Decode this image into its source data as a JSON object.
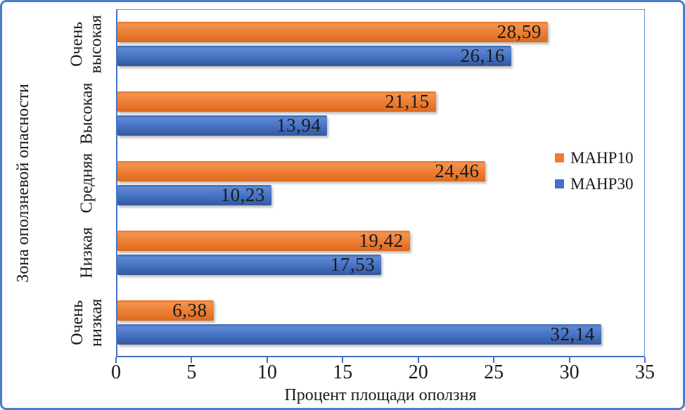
{
  "figure": {
    "border_color": "#4a7cc9",
    "background": "#ffffff"
  },
  "chart_data": {
    "type": "bar",
    "orientation": "horizontal",
    "title": "",
    "xlabel": "Процент площади оползня",
    "ylabel": "Зона оползневой опасности",
    "xlim": [
      0,
      35
    ],
    "xticks": [
      "0",
      "5",
      "10",
      "15",
      "20",
      "25",
      "30",
      "35"
    ],
    "grid": false,
    "legend_position": "right-inside",
    "axis_color": "#4472C4",
    "label_color": "#1a1a1a",
    "categories": [
      "Очень высокая",
      "Высокая",
      "Средняя",
      "Низкая",
      "Очень низкая"
    ],
    "categories_wrapped": [
      [
        "Очень",
        "высокая"
      ],
      [
        "Высокая"
      ],
      [
        "Средняя"
      ],
      [
        "Низкая"
      ],
      [
        "Очень",
        "низкая"
      ]
    ],
    "series": [
      {
        "name": "МАНР10",
        "color": "#ED7D31",
        "values": [
          28.59,
          21.15,
          24.46,
          19.42,
          6.38
        ],
        "labels": [
          "28,59",
          "21,15",
          "24,46",
          "19,42",
          "6,38"
        ]
      },
      {
        "name": "МАНР30",
        "color": "#4472C4",
        "values": [
          26.16,
          13.94,
          10.23,
          17.53,
          32.14
        ],
        "labels": [
          "26,16",
          "13,94",
          "10,23",
          "17,53",
          "32,14"
        ]
      }
    ]
  }
}
